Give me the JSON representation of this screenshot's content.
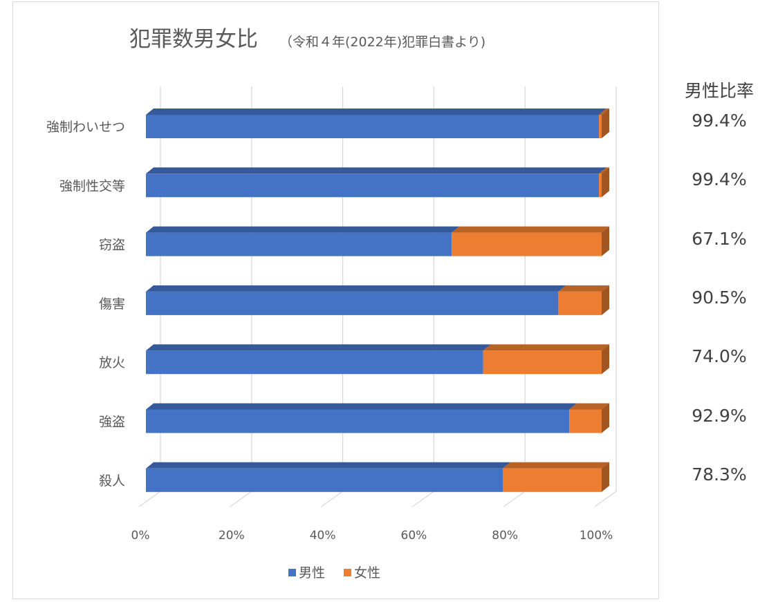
{
  "chart_data": {
    "type": "bar",
    "orientation": "horizontal",
    "stacked": "100%",
    "three_d": true,
    "title": "犯罪数男女比",
    "subtitle": "（令和４年(2022年)犯罪白書より)",
    "categories": [
      "強制わいせつ",
      "強制性交等",
      "窃盗",
      "傷害",
      "放火",
      "強盗",
      "殺人"
    ],
    "series": [
      {
        "name": "男性",
        "color": "#4472c4",
        "values": [
          99.4,
          99.4,
          67.1,
          90.5,
          74.0,
          92.9,
          78.3
        ]
      },
      {
        "name": "女性",
        "color": "#ed7d31",
        "values": [
          0.6,
          0.6,
          32.9,
          9.5,
          26.0,
          7.1,
          21.7
        ]
      }
    ],
    "x_ticks": [
      "0%",
      "20%",
      "40%",
      "60%",
      "80%",
      "100%"
    ],
    "xlim": [
      0,
      100
    ],
    "grid": true,
    "legend_position": "bottom"
  },
  "side_panel": {
    "header": "男性比率",
    "values": [
      "99.4%",
      "99.4%",
      "67.1%",
      "90.5%",
      "74.0%",
      "92.9%",
      "78.3%"
    ]
  }
}
